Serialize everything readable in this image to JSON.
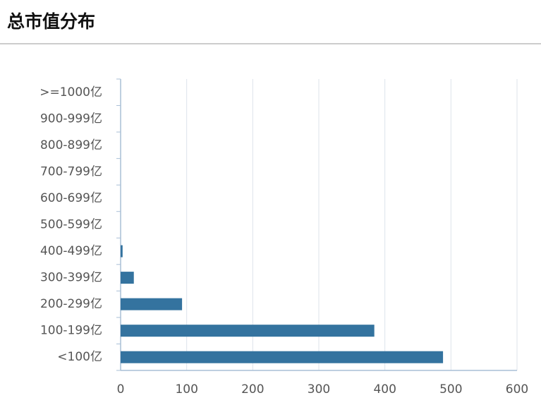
{
  "chart_data": {
    "type": "hbar",
    "title": "总市值分布",
    "categories": [
      "<100亿",
      "100-199亿",
      "200-299亿",
      "300-399亿",
      "400-499亿",
      "500-599亿",
      "600-699亿",
      "700-799亿",
      "800-899亿",
      "900-999亿",
      ">=1000亿"
    ],
    "values": [
      488,
      384,
      93,
      20,
      3,
      0,
      0,
      0,
      0,
      0,
      0
    ],
    "color": "#34739f",
    "xlim": [
      0,
      600
    ],
    "xticks": [
      0,
      100,
      200,
      300,
      400,
      500,
      600
    ],
    "grid": true
  }
}
